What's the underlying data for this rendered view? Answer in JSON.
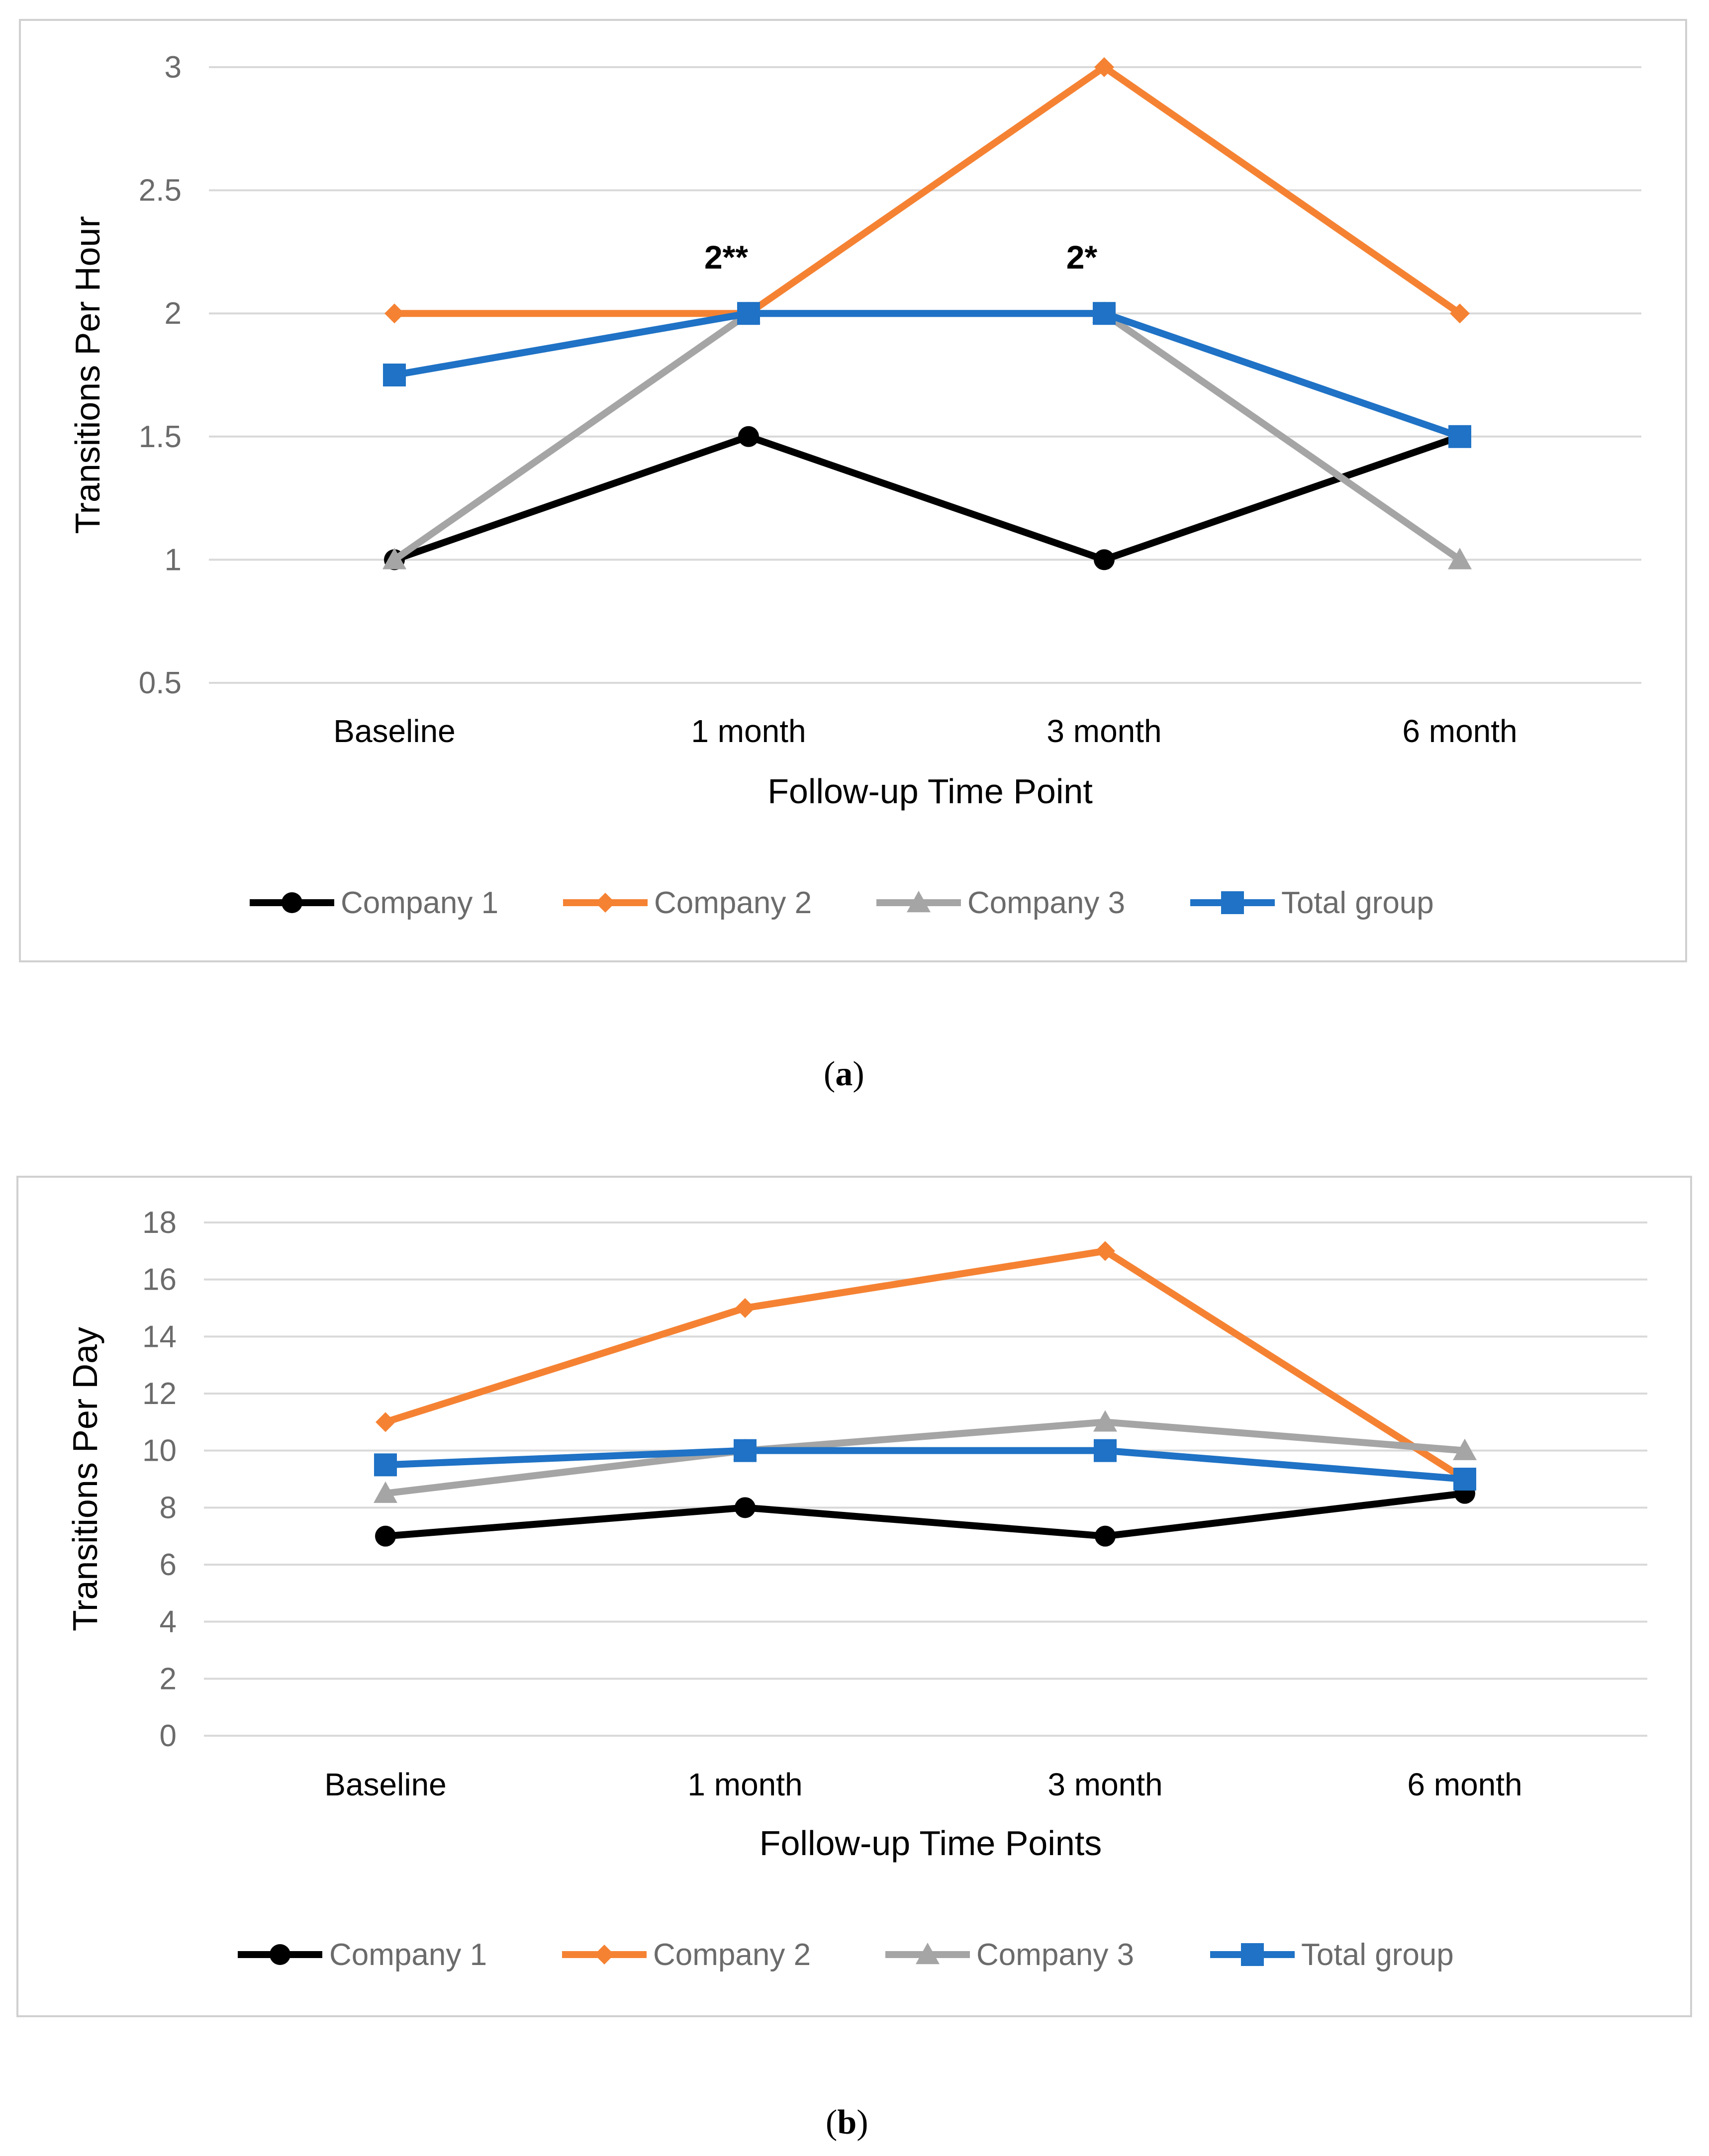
{
  "captions": {
    "a": "a",
    "b": "b"
  },
  "chart_data": [
    {
      "id": "a",
      "type": "line",
      "categories": [
        "Baseline",
        "1 month",
        "3 month",
        "6 month"
      ],
      "xlabel": "Follow-up Time Point",
      "ylabel": "Transitions Per Hour",
      "ylim": [
        0.5,
        3
      ],
      "yticks": [
        0.5,
        1,
        1.5,
        2,
        2.5,
        3
      ],
      "grid": true,
      "legend_position": "bottom",
      "series": [
        {
          "name": "Company 1",
          "values": [
            1,
            1.5,
            1,
            1.5
          ],
          "color": "#000000",
          "marker": "circle"
        },
        {
          "name": "Company 2",
          "values": [
            2,
            2,
            3,
            2
          ],
          "color": "#f58233",
          "marker": "diamond"
        },
        {
          "name": "Company 3",
          "values": [
            1,
            2,
            2,
            1
          ],
          "color": "#a5a5a5",
          "marker": "triangle"
        },
        {
          "name": "Total group",
          "values": [
            1.75,
            2,
            2,
            1.5
          ],
          "color": "#1f72c5",
          "marker": "square"
        }
      ],
      "annotations": [
        {
          "text": "2**",
          "category": "1 month"
        },
        {
          "text": "2*",
          "category": "3 month"
        }
      ]
    },
    {
      "id": "b",
      "type": "line",
      "categories": [
        "Baseline",
        "1 month",
        "3 month",
        "6 month"
      ],
      "xlabel": "Follow-up Time Points",
      "ylabel": "Transitions Per Day",
      "ylim": [
        0,
        18
      ],
      "yticks": [
        0,
        2,
        4,
        6,
        8,
        10,
        12,
        14,
        16,
        18
      ],
      "grid": true,
      "legend_position": "bottom",
      "series": [
        {
          "name": "Company 1",
          "values": [
            7,
            8,
            7,
            8.5
          ],
          "color": "#000000",
          "marker": "circle"
        },
        {
          "name": "Company 2",
          "values": [
            11,
            15,
            17,
            9
          ],
          "color": "#f58233",
          "marker": "diamond"
        },
        {
          "name": "Company 3",
          "values": [
            8.5,
            10,
            11,
            10
          ],
          "color": "#a5a5a5",
          "marker": "triangle"
        },
        {
          "name": "Total group",
          "values": [
            9.5,
            10,
            10,
            9
          ],
          "color": "#1f72c5",
          "marker": "square"
        }
      ],
      "annotations": []
    }
  ]
}
